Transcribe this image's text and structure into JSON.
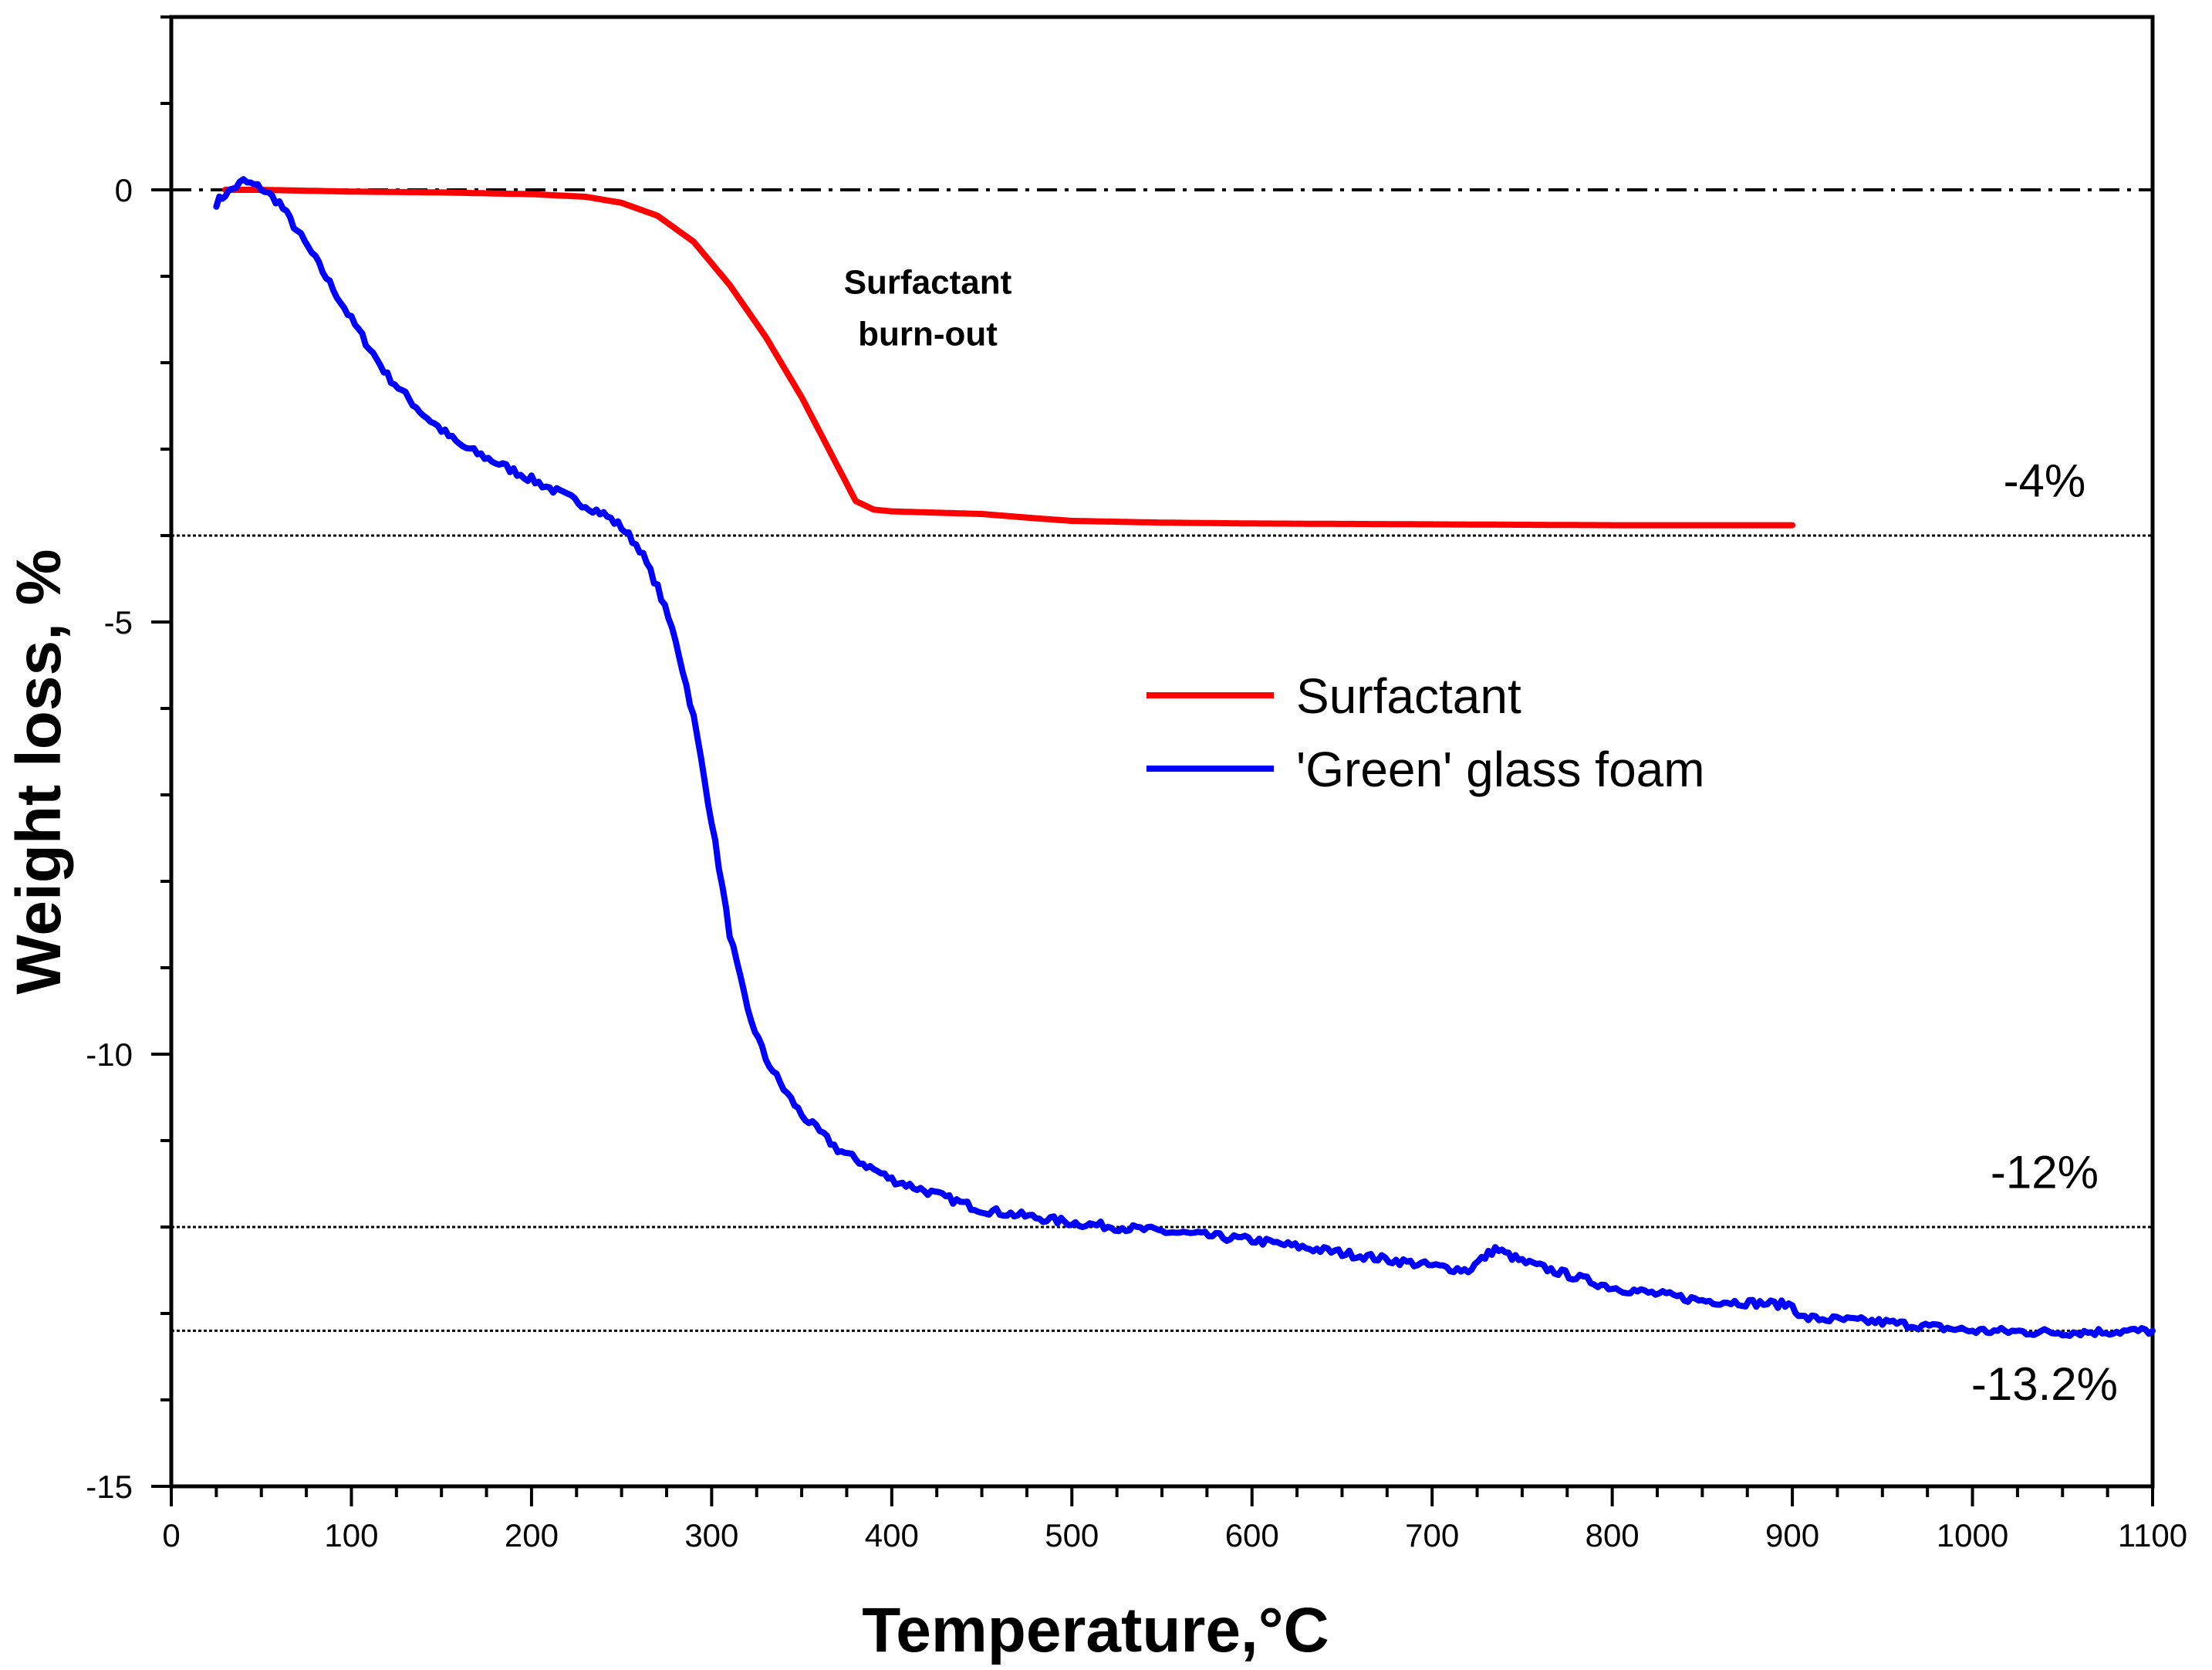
{
  "chart_data": {
    "type": "line",
    "title": "",
    "xlabel": "Temperature,°C",
    "ylabel": "Weight loss, %",
    "xlim": [
      0,
      1100
    ],
    "ylim": [
      -15,
      2
    ],
    "x_ticks": [
      "0",
      "100",
      "200",
      "300",
      "400",
      "500",
      "600",
      "700",
      "800",
      "900",
      "1000",
      "1100"
    ],
    "y_ticks": [
      "0",
      "-5",
      "-10",
      "-15"
    ],
    "grid": false,
    "legend_position": "center-right",
    "series": [
      {
        "name": "Surfactant",
        "color": "#ff0000",
        "x": [
          30,
          50,
          100,
          150,
          200,
          230,
          250,
          270,
          290,
          310,
          330,
          350,
          365,
          375,
          380,
          385,
          390,
          400,
          450,
          480,
          500,
          550,
          600,
          700,
          800,
          900
        ],
        "y": [
          0,
          0,
          -0.02,
          -0.03,
          -0.05,
          -0.08,
          -0.15,
          -0.3,
          -0.6,
          -1.1,
          -1.7,
          -2.4,
          -3.0,
          -3.4,
          -3.6,
          -3.65,
          -3.7,
          -3.72,
          -3.75,
          -3.8,
          -3.83,
          -3.85,
          -3.86,
          -3.87,
          -3.88,
          -3.88
        ]
      },
      {
        "name": "'Green' glass foam",
        "color": "#0000ff",
        "x": [
          25,
          30,
          40,
          50,
          60,
          80,
          100,
          120,
          140,
          160,
          180,
          200,
          220,
          240,
          250,
          260,
          270,
          280,
          290,
          300,
          310,
          320,
          330,
          340,
          350,
          370,
          400,
          450,
          500,
          550,
          600,
          650,
          700,
          720,
          735,
          750,
          800,
          850,
          900,
          905,
          950,
          1000,
          1050,
          1100
        ],
        "y": [
          -0.15,
          -0.05,
          0.1,
          0.02,
          -0.15,
          -0.8,
          -1.5,
          -2.15,
          -2.6,
          -2.95,
          -3.15,
          -3.35,
          -3.55,
          -3.75,
          -3.9,
          -4.15,
          -4.6,
          -5.2,
          -6.1,
          -7.3,
          -8.6,
          -9.5,
          -10.05,
          -10.4,
          -10.7,
          -11.1,
          -11.45,
          -11.8,
          -11.95,
          -12.05,
          -12.15,
          -12.3,
          -12.45,
          -12.5,
          -12.25,
          -12.4,
          -12.7,
          -12.85,
          -12.9,
          -13.05,
          -13.1,
          -13.2,
          -13.22,
          -13.2
        ]
      }
    ],
    "reference_lines": [
      {
        "y": 0,
        "style": "dash-dot"
      },
      {
        "y": -4,
        "style": "dotted"
      },
      {
        "y": -12,
        "style": "dotted"
      },
      {
        "y": -13.2,
        "style": "dotted"
      }
    ],
    "annotations": [
      {
        "text": "-4%",
        "x": 1040,
        "y": -3.55
      },
      {
        "text": "-12%",
        "x": 1040,
        "y": -11.55
      },
      {
        "text": "-13.2%",
        "x": 1040,
        "y": -14.0
      }
    ],
    "callout": {
      "line1": "Surfactant",
      "line2": "burn-out",
      "x": 420,
      "y_line1": -1.2,
      "y_line2": -1.8
    }
  }
}
